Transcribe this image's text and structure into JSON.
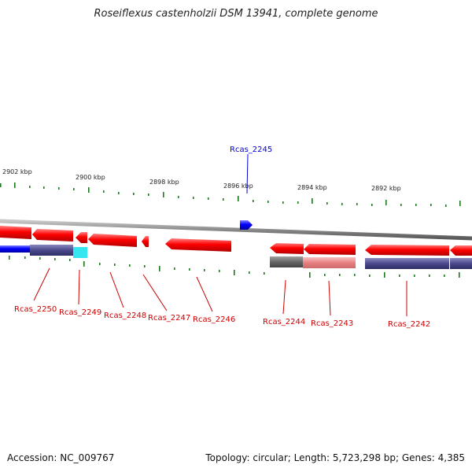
{
  "title": "Roseiflexus castenholzii DSM 13941, complete genome",
  "footer": {
    "accession": "Accession: NC_009767",
    "summary": "Topology: circular; Length: 5,723,298 bp; Genes: 4,385"
  },
  "scale_labels": [
    "2902 kbp",
    "2900 kbp",
    "2898 kbp",
    "2896 kbp",
    "2894 kbp",
    "2892 kbp"
  ],
  "genes": {
    "forward": [
      {
        "id": "Rcas_2245",
        "color": "#0000cc"
      }
    ],
    "reverse": [
      {
        "id": "Rcas_2250",
        "color": "#cc0000"
      },
      {
        "id": "Rcas_2249",
        "color": "#cc0000"
      },
      {
        "id": "Rcas_2248",
        "color": "#cc0000"
      },
      {
        "id": "Rcas_2247",
        "color": "#cc0000"
      },
      {
        "id": "Rcas_2246",
        "color": "#cc0000"
      },
      {
        "id": "Rcas_2244",
        "color": "#cc0000"
      },
      {
        "id": "Rcas_2243",
        "color": "#cc0000"
      },
      {
        "id": "Rcas_2242",
        "color": "#cc0000"
      }
    ]
  },
  "colors": {
    "reverse_gene": "#ff1a1a",
    "forward_gene": "#1a1aff",
    "backbone": "#8c8c8c",
    "tick": "#1f7a1f",
    "feature_navy": "#4a4a8c",
    "feature_cyan": "#33e6f0",
    "feature_gray": "#6e6e6e",
    "feature_pink": "#e88a8a"
  }
}
